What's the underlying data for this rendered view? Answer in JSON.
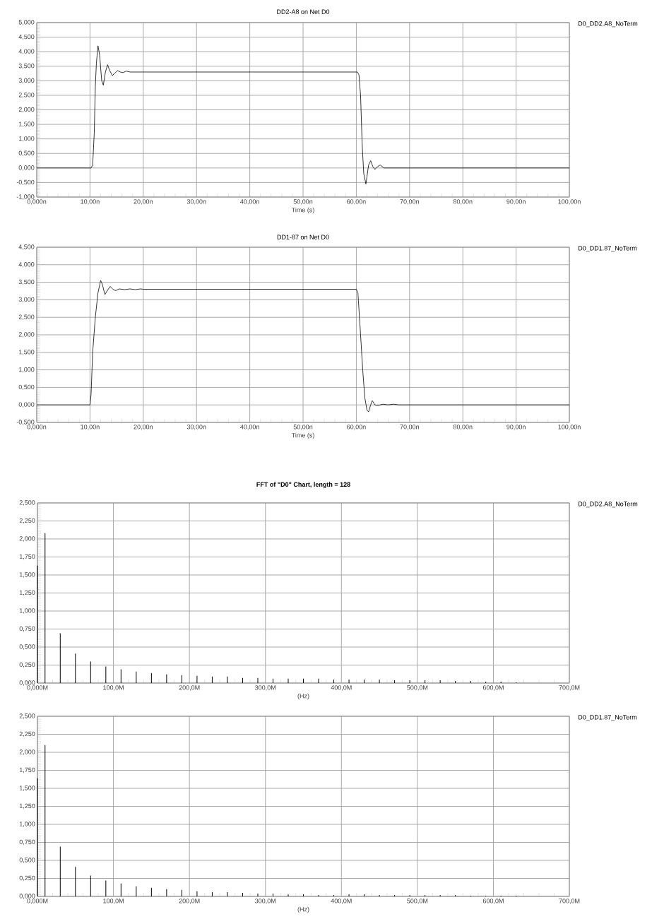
{
  "chart_data": [
    {
      "type": "line",
      "title": "DD2-A8 on Net D0",
      "xlabel": "Time (s)",
      "grid": true,
      "legend": "top right",
      "xlim": [
        0,
        100
      ],
      "ylim": [
        -1,
        5
      ],
      "xticks": [
        {
          "value": 0,
          "label": "0,000n"
        },
        {
          "value": 10,
          "label": "10,00n"
        },
        {
          "value": 20,
          "label": "20,00n"
        },
        {
          "value": 30,
          "label": "30,00n"
        },
        {
          "value": 40,
          "label": "40,00n"
        },
        {
          "value": 50,
          "label": "50,00n"
        },
        {
          "value": 60,
          "label": "60,00n"
        },
        {
          "value": 70,
          "label": "70,00n"
        },
        {
          "value": 80,
          "label": "80,00n"
        },
        {
          "value": 90,
          "label": "90,00n"
        },
        {
          "value": 100,
          "label": "100,00n"
        }
      ],
      "yticks": [
        {
          "value": -1,
          "label": "-1,000"
        },
        {
          "value": -0.5,
          "label": "-0,500"
        },
        {
          "value": 0,
          "label": "0,000"
        },
        {
          "value": 0.5,
          "label": "0,500"
        },
        {
          "value": 1,
          "label": "1,000"
        },
        {
          "value": 1.5,
          "label": "1,500"
        },
        {
          "value": 2,
          "label": "2,000"
        },
        {
          "value": 2.5,
          "label": "2,500"
        },
        {
          "value": 3,
          "label": "3,000"
        },
        {
          "value": 3.5,
          "label": "3,500"
        },
        {
          "value": 4,
          "label": "4,000"
        },
        {
          "value": 4.5,
          "label": "4,500"
        },
        {
          "value": 5,
          "label": "5,000"
        }
      ],
      "x": [
        0,
        10.2,
        10.5,
        10.8,
        11.0,
        11.2,
        11.5,
        11.8,
        12.2,
        12.5,
        12.9,
        13.3,
        13.7,
        14.2,
        14.6,
        15.2,
        15.7,
        16.2,
        16.8,
        17.5,
        60.2,
        60.5,
        60.8,
        61.1,
        61.4,
        61.8,
        62.0,
        62.3,
        62.7,
        63.1,
        63.5,
        64.0,
        64.5,
        65.2,
        66,
        100
      ],
      "series": [
        {
          "name": "D0_DD2.A8_NoTerm",
          "color": "#000000",
          "values": [
            0,
            0,
            0.1,
            1.2,
            2.8,
            3.6,
            4.2,
            3.9,
            3.0,
            2.85,
            3.3,
            3.55,
            3.35,
            3.18,
            3.25,
            3.35,
            3.3,
            3.28,
            3.33,
            3.3,
            3.3,
            3.2,
            2.5,
            0.8,
            -0.2,
            -0.55,
            -0.3,
            0.1,
            0.25,
            0.05,
            -0.05,
            0.05,
            0.1,
            0,
            0,
            0
          ]
        }
      ]
    },
    {
      "type": "line",
      "title": "DD1-87 on Net D0",
      "xlabel": "Time (s)",
      "grid": true,
      "legend": "top right",
      "xlim": [
        0,
        100
      ],
      "ylim": [
        -0.5,
        4.5
      ],
      "xticks": [
        {
          "value": 0,
          "label": "0,000n"
        },
        {
          "value": 10,
          "label": "10,00n"
        },
        {
          "value": 20,
          "label": "20,00n"
        },
        {
          "value": 30,
          "label": "30,00n"
        },
        {
          "value": 40,
          "label": "40,00n"
        },
        {
          "value": 50,
          "label": "50,00n"
        },
        {
          "value": 60,
          "label": "60,00n"
        },
        {
          "value": 70,
          "label": "70,00n"
        },
        {
          "value": 80,
          "label": "80,00n"
        },
        {
          "value": 90,
          "label": "90,00n"
        },
        {
          "value": 100,
          "label": "100,00n"
        }
      ],
      "yticks": [
        {
          "value": -0.5,
          "label": "-0,500"
        },
        {
          "value": 0,
          "label": "0,000"
        },
        {
          "value": 0.5,
          "label": "0,500"
        },
        {
          "value": 1,
          "label": "1,000"
        },
        {
          "value": 1.5,
          "label": "1,500"
        },
        {
          "value": 2,
          "label": "2,000"
        },
        {
          "value": 2.5,
          "label": "2,500"
        },
        {
          "value": 3,
          "label": "3,000"
        },
        {
          "value": 3.5,
          "label": "3,500"
        },
        {
          "value": 4,
          "label": "4,000"
        },
        {
          "value": 4.5,
          "label": "4,500"
        }
      ],
      "x": [
        0,
        10.0,
        10.2,
        10.5,
        11.0,
        11.5,
        12.0,
        12.3,
        12.8,
        13.2,
        13.8,
        14.3,
        14.8,
        15.5,
        16.5,
        17.5,
        18.5,
        19.5,
        20,
        60,
        60.3,
        60.8,
        61.2,
        61.6,
        62.0,
        62.3,
        62.7,
        63.0,
        63.5,
        64.0,
        65,
        66,
        67,
        68,
        100
      ],
      "series": [
        {
          "name": "D0_DD1.87_NoTerm",
          "color": "#000000",
          "values": [
            0,
            0,
            0.3,
            1.5,
            2.5,
            3.2,
            3.55,
            3.45,
            3.15,
            3.25,
            3.38,
            3.3,
            3.26,
            3.31,
            3.29,
            3.31,
            3.29,
            3.31,
            3.3,
            3.3,
            3.2,
            2.0,
            1.0,
            0.2,
            -0.15,
            -0.2,
            0,
            0.12,
            0,
            -0.02,
            0.02,
            0,
            0.02,
            0,
            0
          ]
        }
      ]
    },
    {
      "type": "bar",
      "title": "FFT of \"D0\" Chart, length = 128",
      "xlabel": "(Hz)",
      "grid": true,
      "legend": "top right",
      "xlim": [
        0,
        700
      ],
      "ylim": [
        0,
        2.5
      ],
      "xticks": [
        {
          "value": 0,
          "label": "0,000M"
        },
        {
          "value": 100,
          "label": "100,0M"
        },
        {
          "value": 200,
          "label": "200,0M"
        },
        {
          "value": 300,
          "label": "300,0M"
        },
        {
          "value": 400,
          "label": "400,0M"
        },
        {
          "value": 500,
          "label": "500,0M"
        },
        {
          "value": 600,
          "label": "600,0M"
        },
        {
          "value": 700,
          "label": "700,0M"
        }
      ],
      "yticks": [
        {
          "value": 0,
          "label": "0,000"
        },
        {
          "value": 0.25,
          "label": "0,250"
        },
        {
          "value": 0.5,
          "label": "0,500"
        },
        {
          "value": 0.75,
          "label": "0,750"
        },
        {
          "value": 1,
          "label": "1,000"
        },
        {
          "value": 1.25,
          "label": "1,250"
        },
        {
          "value": 1.5,
          "label": "1,500"
        },
        {
          "value": 1.75,
          "label": "1,750"
        },
        {
          "value": 2,
          "label": "2,000"
        },
        {
          "value": 2.25,
          "label": "2,250"
        },
        {
          "value": 2.5,
          "label": "2,500"
        }
      ],
      "x": [
        0,
        10,
        30,
        50,
        70,
        90,
        110,
        130,
        150,
        170,
        190,
        210,
        230,
        250,
        270,
        290,
        310,
        330,
        350,
        370,
        390,
        410,
        430,
        450,
        470,
        490,
        510,
        530,
        550,
        570,
        590,
        610,
        630
      ],
      "series": [
        {
          "name": "D0_DD2.A8_NoTerm",
          "color": "#000000",
          "values": [
            1.63,
            2.08,
            0.69,
            0.41,
            0.3,
            0.23,
            0.19,
            0.16,
            0.14,
            0.12,
            0.11,
            0.1,
            0.09,
            0.09,
            0.07,
            0.07,
            0.06,
            0.06,
            0.06,
            0.06,
            0.05,
            0.05,
            0.05,
            0.05,
            0.04,
            0.04,
            0.04,
            0.04,
            0.03,
            0.03,
            0.02,
            0.02,
            0.01
          ]
        }
      ]
    },
    {
      "type": "bar",
      "xlabel": "(Hz)",
      "grid": true,
      "legend": "top right",
      "xlim": [
        0,
        700
      ],
      "ylim": [
        0,
        2.5
      ],
      "xticks": [
        {
          "value": 0,
          "label": "0,000M"
        },
        {
          "value": 100,
          "label": "100,0M"
        },
        {
          "value": 200,
          "label": "200,0M"
        },
        {
          "value": 300,
          "label": "300,0M"
        },
        {
          "value": 400,
          "label": "400,0M"
        },
        {
          "value": 500,
          "label": "500,0M"
        },
        {
          "value": 600,
          "label": "600,0M"
        },
        {
          "value": 700,
          "label": "700,0M"
        }
      ],
      "yticks": [
        {
          "value": 0,
          "label": "0,000"
        },
        {
          "value": 0.25,
          "label": "0,250"
        },
        {
          "value": 0.5,
          "label": "0,500"
        },
        {
          "value": 0.75,
          "label": "0,750"
        },
        {
          "value": 1,
          "label": "1,000"
        },
        {
          "value": 1.25,
          "label": "1,250"
        },
        {
          "value": 1.5,
          "label": "1,500"
        },
        {
          "value": 1.75,
          "label": "1,750"
        },
        {
          "value": 2,
          "label": "2,000"
        },
        {
          "value": 2.25,
          "label": "2,250"
        },
        {
          "value": 2.5,
          "label": "2,500"
        }
      ],
      "x": [
        0,
        10,
        30,
        50,
        70,
        90,
        110,
        130,
        150,
        170,
        190,
        210,
        230,
        250,
        270,
        290,
        310,
        330,
        350,
        370,
        390,
        410,
        430,
        450,
        470,
        490,
        510,
        530,
        550,
        570,
        590,
        610,
        630
      ],
      "series": [
        {
          "name": "D0_DD1.87_NoTerm",
          "color": "#000000",
          "values": [
            1.64,
            2.1,
            0.69,
            0.41,
            0.29,
            0.22,
            0.18,
            0.14,
            0.12,
            0.1,
            0.09,
            0.07,
            0.06,
            0.06,
            0.05,
            0.04,
            0.04,
            0.03,
            0.03,
            0.02,
            0.02,
            0.03,
            0.03,
            0.02,
            0.02,
            0.02,
            0.02,
            0.02,
            0.02,
            0.01,
            0.01,
            0.01,
            0.01
          ]
        }
      ]
    }
  ]
}
